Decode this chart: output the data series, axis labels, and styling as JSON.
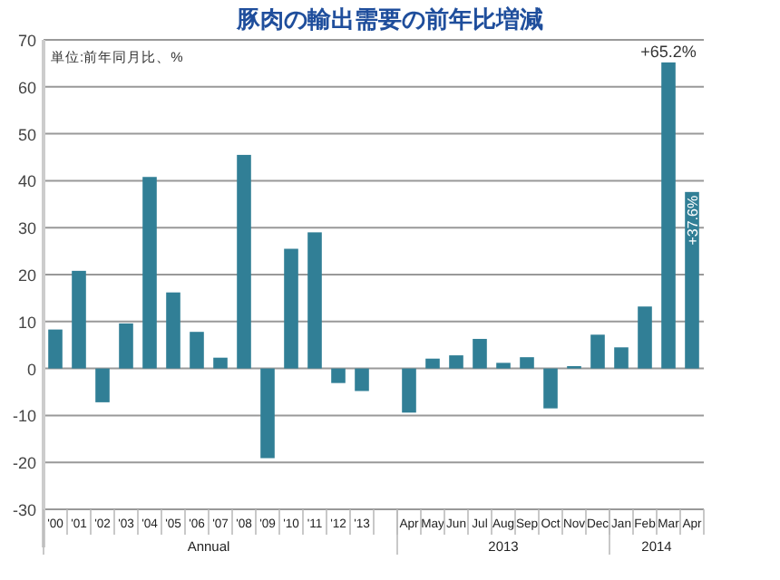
{
  "chart_data": {
    "type": "bar",
    "title": "豚肉の輸出需要の前年比増減",
    "categories": [
      "'00",
      "'01",
      "'02",
      "'03",
      "'04",
      "'05",
      "'06",
      "'07",
      "'08",
      "'09",
      "'10",
      "'11",
      "'12",
      "'13",
      null,
      "Apr",
      "May",
      "Jun",
      "Jul",
      "Aug",
      "Sep",
      "Oct",
      "Nov",
      "Dec",
      "Jan",
      "Feb",
      "Mar",
      "Apr"
    ],
    "values": [
      8.3,
      20.8,
      -7.2,
      9.6,
      40.8,
      16.2,
      7.8,
      2.3,
      45.5,
      -19.1,
      25.5,
      29.0,
      -3.1,
      -4.8,
      null,
      -9.4,
      2.1,
      2.8,
      6.3,
      1.2,
      2.4,
      -8.5,
      0.5,
      7.2,
      4.5,
      13.2,
      65.2,
      37.6
    ],
    "value_labels": [
      null,
      null,
      null,
      null,
      null,
      null,
      null,
      null,
      null,
      null,
      null,
      null,
      null,
      null,
      null,
      null,
      null,
      null,
      null,
      null,
      null,
      null,
      null,
      null,
      null,
      null,
      "+65.2%",
      "+37.6%"
    ],
    "color": "#317f96",
    "ylim": [
      -30,
      70
    ],
    "yticks": [
      -30,
      -20,
      -10,
      0,
      10,
      20,
      30,
      40,
      50,
      60,
      70
    ],
    "grid": "y",
    "annotations": [
      "単位:前年同月比、%",
      "Annual",
      "2013",
      "2014"
    ]
  }
}
